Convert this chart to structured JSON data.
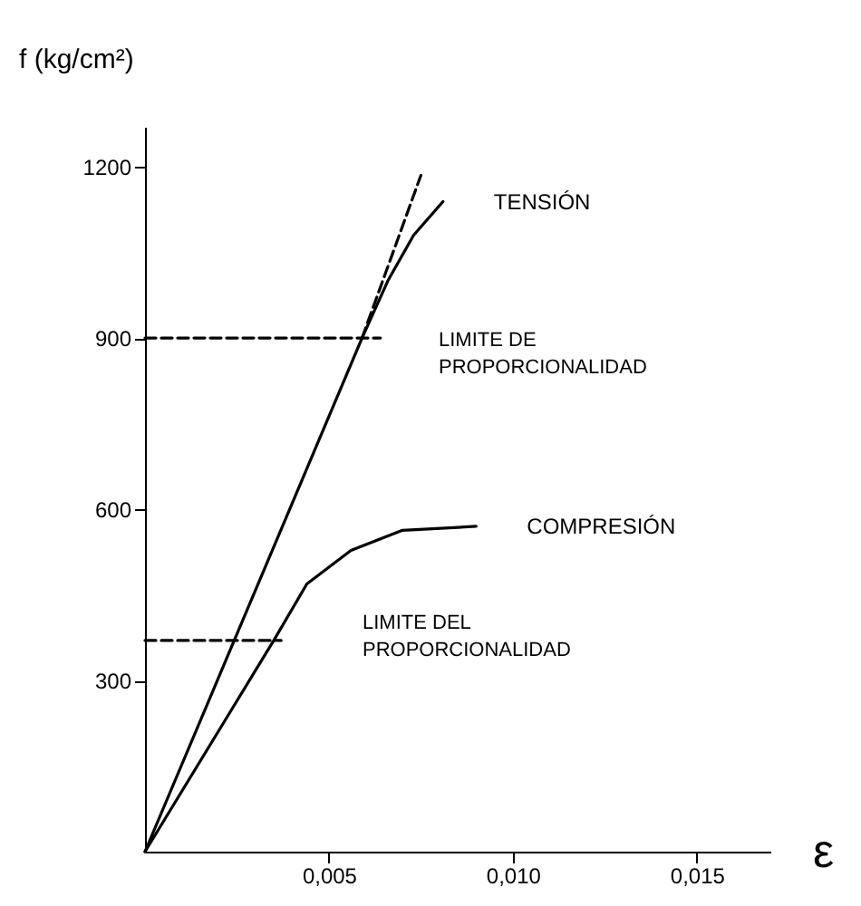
{
  "chart_data": {
    "type": "line",
    "xlabel": "ε",
    "ylabel": "f (kg/cm²)",
    "xlim": [
      0,
      0.017
    ],
    "ylim": [
      0,
      1270
    ],
    "xticks": [
      {
        "value": 0.005,
        "label": "0,005"
      },
      {
        "value": 0.01,
        "label": "0,010"
      },
      {
        "value": 0.015,
        "label": "0,015"
      }
    ],
    "yticks": [
      300,
      600,
      900,
      1200
    ],
    "grid": false,
    "marker": "none",
    "series": [
      {
        "name": "TENSIÓN",
        "color": "#000000",
        "x": [
          0,
          0.0059,
          0.0066,
          0.0073,
          0.0081
        ],
        "values": [
          0,
          900,
          1000,
          1080,
          1139
        ]
      },
      {
        "color": "#000000",
        "line_style": "dashed",
        "x": [
          0.0059,
          0.0075
        ],
        "values": [
          900,
          1185
        ]
      },
      {
        "name": "COMPRESIÓN",
        "color": "#000000",
        "x": [
          0,
          0.0035,
          0.0044,
          0.0056,
          0.007,
          0.009
        ],
        "values": [
          0,
          370,
          469,
          528,
          563,
          570
        ]
      },
      {
        "color": "#000000",
        "line_style": "dashed",
        "x": [
          0,
          0.0064
        ],
        "values": [
          900,
          900
        ]
      },
      {
        "color": "#000000",
        "line_style": "dashed",
        "x": [
          0,
          0.0037
        ],
        "values": [
          370,
          370
        ]
      }
    ],
    "annotations": [
      "LIMITE DE\nPROPORCIONALIDAD",
      "LIMITE DEL\nPROPORCIONALIDAD"
    ]
  }
}
